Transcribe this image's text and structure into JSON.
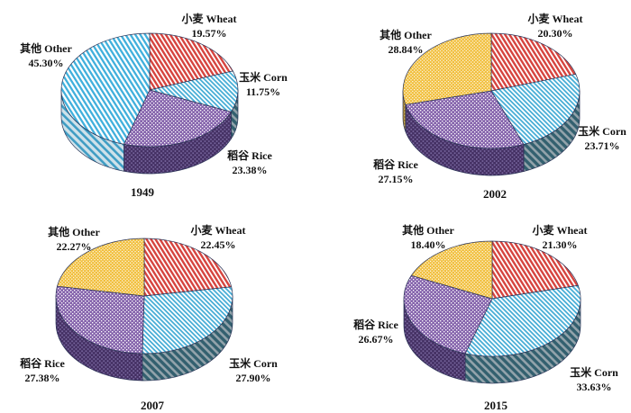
{
  "page": {
    "background": "#ffffff"
  },
  "palette": {
    "outline": "#2a3356",
    "text": "#111111",
    "wheat_bg": "#ffffff",
    "wheat_stripe": "#d6433e",
    "wheat_side_bg": "#993a34",
    "wheat_side_stripe": "#cc8884",
    "corn_bg": "#ffffff",
    "corn_stripe": "#49aed6",
    "corn_side_bg": "#33606f",
    "corn_side_stripe": "#93a3ab",
    "rice_bg": "#8766ad",
    "rice_dot": "#ffffff",
    "rice_side_bg": "#443063",
    "rice_side_dot": "#7e6da5",
    "other_bg": "#f1bf3c",
    "other_dot": "#ffffff",
    "other_side_bg": "#a8842c",
    "other_side_dot": "#d8c27e",
    "other1949_bg": "#ffffff",
    "other1949_stripe": "#41b0dc",
    "other1949_side_bg": "#cfe2ea",
    "other1949_side_stripe": "#3f9dc4"
  },
  "chart_data": [
    {
      "type": "pie",
      "year": "1949",
      "start_angle_deg": 0,
      "direction": "clockwise",
      "labels_position": "outside",
      "slices": [
        {
          "label": "小麦 Wheat",
          "pct_label": "19.57%",
          "value": 19.57,
          "category": "wheat"
        },
        {
          "label": "玉米 Corn",
          "pct_label": "11.75%",
          "value": 11.75,
          "category": "corn"
        },
        {
          "label": "稻谷 Rice",
          "pct_label": "23.38%",
          "value": 23.38,
          "category": "rice"
        },
        {
          "label": "其他 Other",
          "pct_label": "45.30%",
          "value": 45.3,
          "category": "other",
          "fill_variant": "cyan-stripe"
        }
      ]
    },
    {
      "type": "pie",
      "year": "2002",
      "start_angle_deg": 0,
      "direction": "clockwise",
      "labels_position": "outside",
      "slices": [
        {
          "label": "小麦 Wheat",
          "pct_label": "20.30%",
          "value": 20.3,
          "category": "wheat"
        },
        {
          "label": "玉米 Corn",
          "pct_label": "23.71%",
          "value": 23.71,
          "category": "corn"
        },
        {
          "label": "稻谷 Rice",
          "pct_label": "27.15%",
          "value": 27.15,
          "category": "rice"
        },
        {
          "label": "其他 Other",
          "pct_label": "28.84%",
          "value": 28.84,
          "category": "other",
          "fill_variant": "yellow-dot"
        }
      ]
    },
    {
      "type": "pie",
      "year": "2007",
      "start_angle_deg": 0,
      "direction": "clockwise",
      "labels_position": "outside",
      "slices": [
        {
          "label": "小麦 Wheat",
          "pct_label": "22.45%",
          "value": 22.45,
          "category": "wheat"
        },
        {
          "label": "玉米 Corn",
          "pct_label": "27.90%",
          "value": 27.9,
          "category": "corn"
        },
        {
          "label": "稻谷 Rice",
          "pct_label": "27.38%",
          "value": 27.38,
          "category": "rice"
        },
        {
          "label": "其他 Other",
          "pct_label": "22.27%",
          "value": 22.27,
          "category": "other",
          "fill_variant": "yellow-dot"
        }
      ]
    },
    {
      "type": "pie",
      "year": "2015",
      "start_angle_deg": 0,
      "direction": "clockwise",
      "labels_position": "outside",
      "slices": [
        {
          "label": "小麦 Wheat",
          "pct_label": "21.30%",
          "value": 21.3,
          "category": "wheat"
        },
        {
          "label": "玉米 Corn",
          "pct_label": "33.63%",
          "value": 33.63,
          "category": "corn"
        },
        {
          "label": "稻谷 Rice",
          "pct_label": "26.67%",
          "value": 26.67,
          "category": "rice"
        },
        {
          "label": "其他 Other",
          "pct_label": "18.40%",
          "value": 18.4,
          "category": "other",
          "fill_variant": "yellow-dot"
        }
      ]
    }
  ]
}
